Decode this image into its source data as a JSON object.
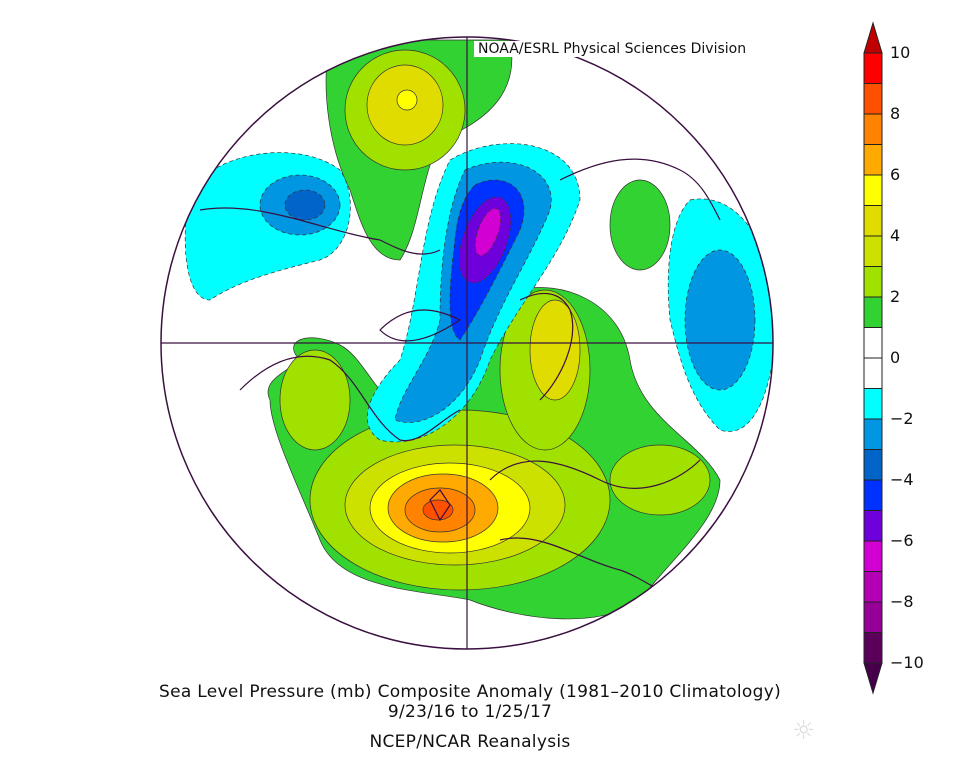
{
  "map": {
    "credit": "NOAA/ESRL Physical Sciences Division",
    "title": "Sea Level Pressure (mb) Composite Anomaly (1981–2010 Climatology)",
    "date_range": "9/23/16  to 1/25/17",
    "source": "NCEP/NCAR Reanalysis",
    "projection": "north polar stereographic"
  },
  "colorbar": {
    "labels": [
      "10",
      "8",
      "6",
      "4",
      "2",
      "0",
      "−2",
      "−4",
      "−6",
      "−8",
      "−10"
    ],
    "min": -10,
    "max": 10,
    "step": 1,
    "colors": [
      "#ff0000",
      "#ff5000",
      "#ff8200",
      "#ffaa00",
      "#ffff00",
      "#e1dc00",
      "#cde100",
      "#a0e100",
      "#32d232",
      "#ffffff",
      "#ffffff",
      "#00ffff",
      "#0096e1",
      "#0064c8",
      "#0032ff",
      "#6e00dc",
      "#d200d2",
      "#b400b4",
      "#960096",
      "#5a005a"
    ],
    "over_color": "#c00000",
    "under_color": "#46004a"
  }
}
